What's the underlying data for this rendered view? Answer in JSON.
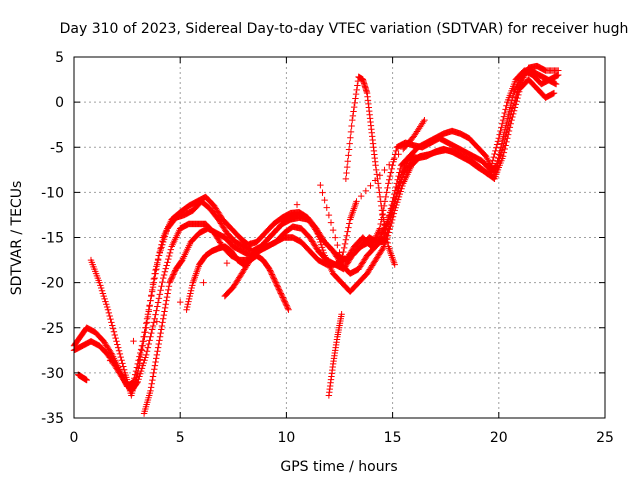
{
  "chart_data": {
    "type": "scatter",
    "title": "Day 310 of 2023, Sidereal Day-to-day VTEC variation (SDTVAR) for receiver hugh",
    "xlabel": "GPS time / hours",
    "ylabel": "SDTVAR / TECUs",
    "xlim": [
      0,
      25
    ],
    "ylim": [
      -35,
      5
    ],
    "xticks": [
      0,
      5,
      10,
      15,
      20,
      25
    ],
    "yticks": [
      -35,
      -30,
      -25,
      -20,
      -15,
      -10,
      -5,
      0,
      5
    ],
    "grid": true,
    "marker": "+",
    "colors": {
      "series": "#ff0000",
      "grid": "#a0a0a0",
      "axis": "#000000"
    },
    "series": [
      {
        "x": [
          0.0,
          0.3,
          0.6,
          1.0,
          1.4,
          1.8,
          2.2,
          2.5,
          2.8,
          3.2,
          3.6,
          4.0,
          4.4,
          4.8,
          5.2,
          5.6,
          6.0,
          6.4,
          6.8,
          7.2,
          7.6,
          8.0,
          8.4,
          8.8,
          9.2,
          9.6,
          10.0,
          10.4,
          10.8,
          11.2,
          11.6,
          12.0,
          12.4,
          12.8,
          13.2,
          13.6,
          14.0,
          14.4,
          14.8,
          15.2,
          15.6,
          16.0,
          16.4,
          16.8,
          17.2,
          17.6,
          18.0,
          18.4,
          18.8,
          19.2,
          19.6,
          20.0,
          20.4,
          20.8,
          21.2,
          21.6,
          22.0,
          22.4,
          22.8
        ],
        "y": [
          -27,
          -26,
          -25,
          -25.5,
          -26.5,
          -28,
          -30,
          -31.5,
          -31,
          -27,
          -22,
          -17,
          -14,
          -12.8,
          -12.5,
          -12,
          -11,
          -11.8,
          -13,
          -14.5,
          -15.5,
          -16,
          -16.5,
          -16,
          -15,
          -14,
          -13,
          -12.5,
          -12.5,
          -13.5,
          -15,
          -16,
          -17,
          -17.5,
          -16,
          -15,
          -16,
          -14,
          -9,
          -5,
          -4.5,
          -4.8,
          -5,
          -4.5,
          -4,
          -4.5,
          -5,
          -5.5,
          -6,
          -6.5,
          -7.5,
          -4,
          0,
          2.5,
          3.5,
          3,
          2,
          2.5,
          3
        ]
      },
      {
        "x": [
          0.0,
          0.4,
          0.8,
          1.2,
          1.6,
          2.0,
          2.4,
          2.7,
          3.0,
          3.4,
          3.8,
          4.2,
          4.6,
          5.0,
          5.4,
          5.8,
          6.2,
          6.6,
          7.0,
          7.4,
          7.8,
          8.2,
          8.6,
          9.0,
          9.4,
          9.8,
          10.2,
          10.6,
          11.0,
          11.4,
          11.8,
          12.2,
          12.6,
          13.0,
          13.4,
          13.8,
          14.2,
          14.6,
          15.0,
          15.4,
          15.8,
          16.2,
          16.6,
          17.0,
          17.4,
          17.8,
          18.2,
          18.6,
          19.0,
          19.4,
          19.8,
          20.2,
          20.6,
          21.0,
          21.4,
          21.8,
          22.2,
          22.6
        ],
        "y": [
          -27.5,
          -27,
          -26.5,
          -27,
          -28,
          -29.5,
          -31,
          -32,
          -31,
          -28,
          -24,
          -19.5,
          -16,
          -14,
          -13.5,
          -13.5,
          -13.5,
          -14.5,
          -16,
          -17,
          -17.5,
          -17.5,
          -16.5,
          -15.5,
          -14.5,
          -13.5,
          -13,
          -12.8,
          -13,
          -14,
          -15.5,
          -16.5,
          -18,
          -19,
          -18.5,
          -17,
          -16,
          -15,
          -11,
          -7,
          -6,
          -6.2,
          -6,
          -5.5,
          -5.2,
          -5.5,
          -6,
          -6.5,
          -7.2,
          -7.8,
          -8.5,
          -6,
          -2,
          1.5,
          2.5,
          1.5,
          0.5,
          1
        ]
      },
      {
        "x": [
          0.8,
          1.2,
          1.6,
          2.0,
          2.4,
          2.7,
          3.0,
          3.4,
          3.8,
          4.2,
          4.6,
          5.0,
          5.4,
          5.8,
          6.2,
          6.6,
          7.0,
          7.4,
          7.8,
          8.2,
          8.6,
          9.0,
          9.4,
          9.8,
          10.2,
          10.6,
          11.0,
          11.4,
          11.8,
          12.2,
          12.6,
          13.0,
          13.4,
          13.8,
          14.2,
          14.6,
          15.0,
          15.4,
          15.8,
          16.2,
          16.6,
          17.0,
          17.4,
          17.8,
          18.2,
          18.6,
          19.0,
          19.4,
          19.8,
          20.2,
          20.6,
          21.0,
          21.4,
          21.8,
          22.2,
          22.8
        ],
        "y": [
          -17.5,
          -20,
          -23,
          -26.5,
          -30,
          -32.5,
          -30,
          -25,
          -19,
          -15,
          -13,
          -12.2,
          -11.5,
          -11,
          -10.5,
          -11.5,
          -13,
          -14,
          -15,
          -15.8,
          -15.5,
          -14.5,
          -13.5,
          -12.8,
          -12.3,
          -12.2,
          -12.8,
          -14,
          -17,
          -19,
          -20,
          -21,
          -20,
          -19,
          -17.5,
          -16,
          -12,
          -8,
          -6,
          -5,
          -4.5,
          -4,
          -3.5,
          -3.2,
          -3.5,
          -4,
          -5,
          -6,
          -8,
          -5,
          -1,
          2,
          3.8,
          4,
          3.5,
          3.5
        ]
      },
      {
        "x": [
          3.3,
          3.6,
          3.9,
          4.2,
          4.5,
          4.8,
          5.1,
          5.5,
          5.9,
          6.3,
          6.7,
          7.1,
          7.5,
          7.9,
          8.3,
          8.7,
          9.1,
          9.5,
          9.9,
          10.3,
          10.7,
          11.1,
          11.5,
          11.9,
          12.3,
          12.7,
          13.1,
          13.5,
          13.9,
          14.3,
          14.7,
          15.1,
          15.5,
          15.9,
          16.3,
          16.7,
          17.1,
          17.5,
          17.9,
          18.3,
          18.7,
          19.1,
          19.5,
          19.9,
          20.3,
          20.7,
          21.1,
          21.5,
          21.9,
          22.3,
          22.7
        ],
        "y": [
          -34.5,
          -32,
          -28,
          -24,
          -20,
          -18.5,
          -17.5,
          -15.5,
          -14.5,
          -14,
          -14.5,
          -15,
          -16,
          -16.5,
          -17,
          -16.5,
          -16,
          -15.5,
          -14.5,
          -13.8,
          -14,
          -15,
          -16.5,
          -17.5,
          -18,
          -18.5,
          -17,
          -16,
          -15.5,
          -15.5,
          -13.5,
          -11,
          -8,
          -6.5,
          -6,
          -5.8,
          -5.5,
          -5.3,
          -5.5,
          -6,
          -6.5,
          -7.2,
          -8,
          -7,
          -3,
          1,
          3,
          3.5,
          3,
          2.5,
          2
        ]
      },
      {
        "x": [
          5.3,
          5.6,
          5.9,
          6.2,
          6.5,
          6.8,
          7.1,
          7.4,
          7.7,
          8.0,
          8.3,
          8.6,
          8.9,
          9.2,
          9.5,
          9.8,
          10.1
        ],
        "y": [
          -23,
          -20,
          -18,
          -17,
          -16.5,
          -16.2,
          -16,
          -16.5,
          -17.5,
          -18,
          -17.5,
          -17,
          -17.5,
          -18.5,
          -20,
          -21.5,
          -23
        ]
      },
      {
        "x": [
          7.1,
          7.5,
          7.9,
          8.3,
          8.7,
          9.1,
          9.5,
          9.9,
          10.3,
          10.7,
          11.1,
          11.5,
          11.9,
          12.3,
          12.7,
          13.1,
          13.5,
          13.9,
          14.3,
          14.7,
          15.1,
          15.5,
          15.9,
          16.3
        ],
        "y": [
          -21.5,
          -20.5,
          -19,
          -17.5,
          -16.5,
          -16,
          -15.5,
          -15,
          -15,
          -15.5,
          -16.5,
          -17.5,
          -18,
          -18,
          -17.5,
          -17,
          -16,
          -15,
          -15.5,
          -15.5,
          -12,
          -9,
          -7,
          -6
        ]
      },
      {
        "x": [
          12.0,
          12.2,
          12.4,
          12.6
        ],
        "y": [
          -32.5,
          -29,
          -26,
          -23.5
        ]
      },
      {
        "x": [
          12.8,
          13.1,
          13.4,
          13.6,
          13.8,
          14.0,
          14.2,
          14.5,
          14.8,
          15.1
        ],
        "y": [
          -8.5,
          -2,
          2.8,
          2.5,
          1,
          -3,
          -7,
          -12,
          -16,
          -18
        ]
      },
      {
        "x": [
          0.2,
          0.4,
          0.6,
          11.6,
          12.6,
          13.0,
          13.3,
          15.5,
          16.0,
          16.5
        ],
        "y": [
          -30.2,
          -30.5,
          -30.8,
          -9.2,
          -17.5,
          -13,
          -11,
          -5.2,
          -3.8,
          -2
        ]
      }
    ]
  }
}
